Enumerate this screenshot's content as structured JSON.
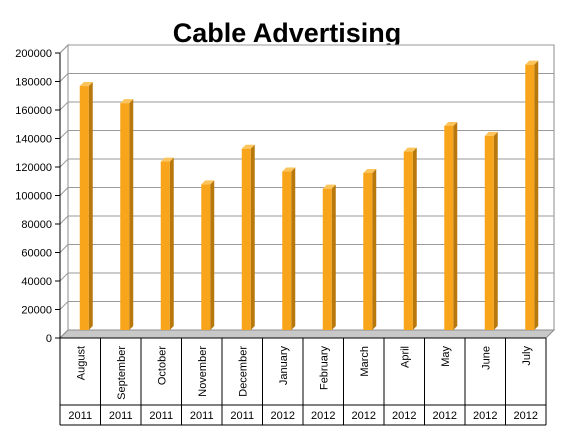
{
  "chart_data": {
    "type": "bar",
    "title": "Cable Advertising",
    "xlabel": "",
    "ylabel": "",
    "ylim": [
      0,
      200000
    ],
    "yticks": [
      0,
      20000,
      40000,
      60000,
      80000,
      100000,
      120000,
      140000,
      160000,
      180000,
      200000
    ],
    "categories": [
      "August",
      "September",
      "October",
      "November",
      "December",
      "January",
      "February",
      "March",
      "April",
      "May",
      "June",
      "July"
    ],
    "years": [
      "2011",
      "2011",
      "2011",
      "2011",
      "2011",
      "2012",
      "2012",
      "2012",
      "2012",
      "2012",
      "2012",
      "2012"
    ],
    "values": [
      174000,
      162000,
      121000,
      105000,
      130000,
      114000,
      102000,
      113000,
      128000,
      146000,
      139000,
      189000
    ],
    "grid": true,
    "legend": "none",
    "colors": {
      "bar_front": "#f8a51c",
      "bar_side": "#b8780c",
      "bar_top": "#fcc45a",
      "grid": "#9a9a9a",
      "wall": "#ffffff",
      "floor": "#c8c8c8"
    }
  }
}
